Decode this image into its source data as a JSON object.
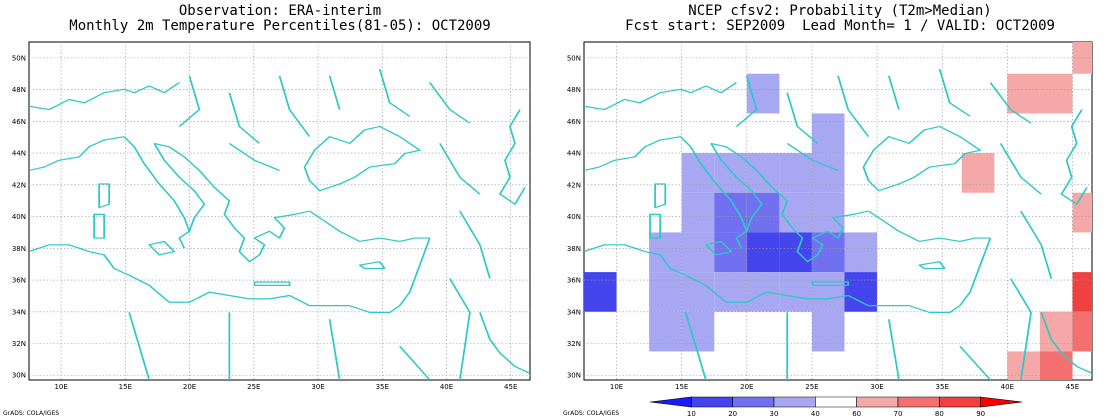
{
  "left_panel": {
    "title_line1": "Observation: ERA-interim",
    "title_line2": "Monthly 2m Temperature Percentiles(81-05): OCT2009",
    "credit": "GrADS: COLA/IGES"
  },
  "right_panel": {
    "title_line1": "NCEP cfsv2: Probability (T2m>Median)",
    "title_line2": "Fcst start: SEP2009  Lead Month= 1 / VALID: OCT2009",
    "credit": "GrADS: COLA/IGES"
  },
  "axes": {
    "lon_labels": [
      "10E",
      "15E",
      "20E",
      "25E",
      "30E",
      "35E",
      "40E",
      "45E"
    ],
    "lon_values": [
      10,
      15,
      20,
      25,
      30,
      35,
      40,
      45
    ],
    "lat_labels": [
      "30N",
      "32N",
      "34N",
      "36N",
      "38N",
      "40N",
      "42N",
      "44N",
      "46N",
      "48N",
      "50N"
    ],
    "lat_values": [
      30,
      32,
      34,
      36,
      38,
      40,
      42,
      44,
      46,
      48,
      50
    ],
    "lon_range": [
      7.5,
      46.5
    ],
    "lat_range": [
      29.7,
      51.0
    ]
  },
  "colors": {
    "coast": "#2ec8c8",
    "grid": "#999999"
  },
  "colorbar": {
    "labels": [
      "10",
      "20",
      "30",
      "40",
      "60",
      "70",
      "80",
      "90"
    ],
    "colors": [
      "#1a1aff",
      "#4545ee",
      "#7070f0",
      "#a8a8f2",
      "#ffffff",
      "#f4a8a8",
      "#f47070",
      "#f04040",
      "#ff0000"
    ]
  },
  "chart_data": {
    "type": "heatmap",
    "title": "NCEP cfsv2: Probability (T2m>Median)",
    "subtitle": "Fcst start: SEP2009  Lead Month= 1 / VALID: OCT2009",
    "cell_size_deg": 2.5,
    "cells": [
      {
        "lon": 21.25,
        "lat": 47.75,
        "value": 35
      },
      {
        "lon": 26.25,
        "lat": 45.25,
        "value": 35
      },
      {
        "lon": 16.25,
        "lat": 42.75,
        "value": 35
      },
      {
        "lon": 18.75,
        "lat": 42.75,
        "value": 35
      },
      {
        "lon": 21.25,
        "lat": 42.75,
        "value": 35
      },
      {
        "lon": 23.75,
        "lat": 42.75,
        "value": 35
      },
      {
        "lon": 26.25,
        "lat": 42.75,
        "value": 35
      },
      {
        "lon": 16.25,
        "lat": 40.25,
        "value": 35
      },
      {
        "lon": 18.75,
        "lat": 40.25,
        "value": 25
      },
      {
        "lon": 21.25,
        "lat": 40.25,
        "value": 25
      },
      {
        "lon": 23.75,
        "lat": 40.25,
        "value": 35
      },
      {
        "lon": 26.25,
        "lat": 40.25,
        "value": 35
      },
      {
        "lon": 13.75,
        "lat": 37.75,
        "value": 35
      },
      {
        "lon": 16.25,
        "lat": 37.75,
        "value": 35
      },
      {
        "lon": 18.75,
        "lat": 37.75,
        "value": 25
      },
      {
        "lon": 21.25,
        "lat": 37.75,
        "value": 15
      },
      {
        "lon": 23.75,
        "lat": 37.75,
        "value": 15
      },
      {
        "lon": 26.25,
        "lat": 37.75,
        "value": 25
      },
      {
        "lon": 28.75,
        "lat": 37.75,
        "value": 35
      },
      {
        "lon": 8.75,
        "lat": 35.25,
        "value": 15
      },
      {
        "lon": 13.75,
        "lat": 35.25,
        "value": 35
      },
      {
        "lon": 16.25,
        "lat": 35.25,
        "value": 35
      },
      {
        "lon": 18.75,
        "lat": 35.25,
        "value": 35
      },
      {
        "lon": 21.25,
        "lat": 35.25,
        "value": 35
      },
      {
        "lon": 23.75,
        "lat": 35.25,
        "value": 35
      },
      {
        "lon": 26.25,
        "lat": 35.25,
        "value": 35
      },
      {
        "lon": 28.75,
        "lat": 35.25,
        "value": 15
      },
      {
        "lon": 13.75,
        "lat": 32.75,
        "value": 35
      },
      {
        "lon": 16.25,
        "lat": 32.75,
        "value": 35
      },
      {
        "lon": 26.25,
        "lat": 32.75,
        "value": 35
      },
      {
        "lon": 41.25,
        "lat": 47.75,
        "value": 65
      },
      {
        "lon": 43.75,
        "lat": 47.75,
        "value": 65
      },
      {
        "lon": 46.25,
        "lat": 50.25,
        "value": 65
      },
      {
        "lon": 37.75,
        "lat": 42.75,
        "value": 65
      },
      {
        "lon": 46.25,
        "lat": 40.25,
        "value": 65
      },
      {
        "lon": 46.25,
        "lat": 35.25,
        "value": 85
      },
      {
        "lon": 43.75,
        "lat": 32.75,
        "value": 65
      },
      {
        "lon": 46.25,
        "lat": 32.75,
        "value": 75
      },
      {
        "lon": 41.25,
        "lat": 30.25,
        "value": 65
      },
      {
        "lon": 43.75,
        "lat": 30.25,
        "value": 75
      }
    ]
  }
}
